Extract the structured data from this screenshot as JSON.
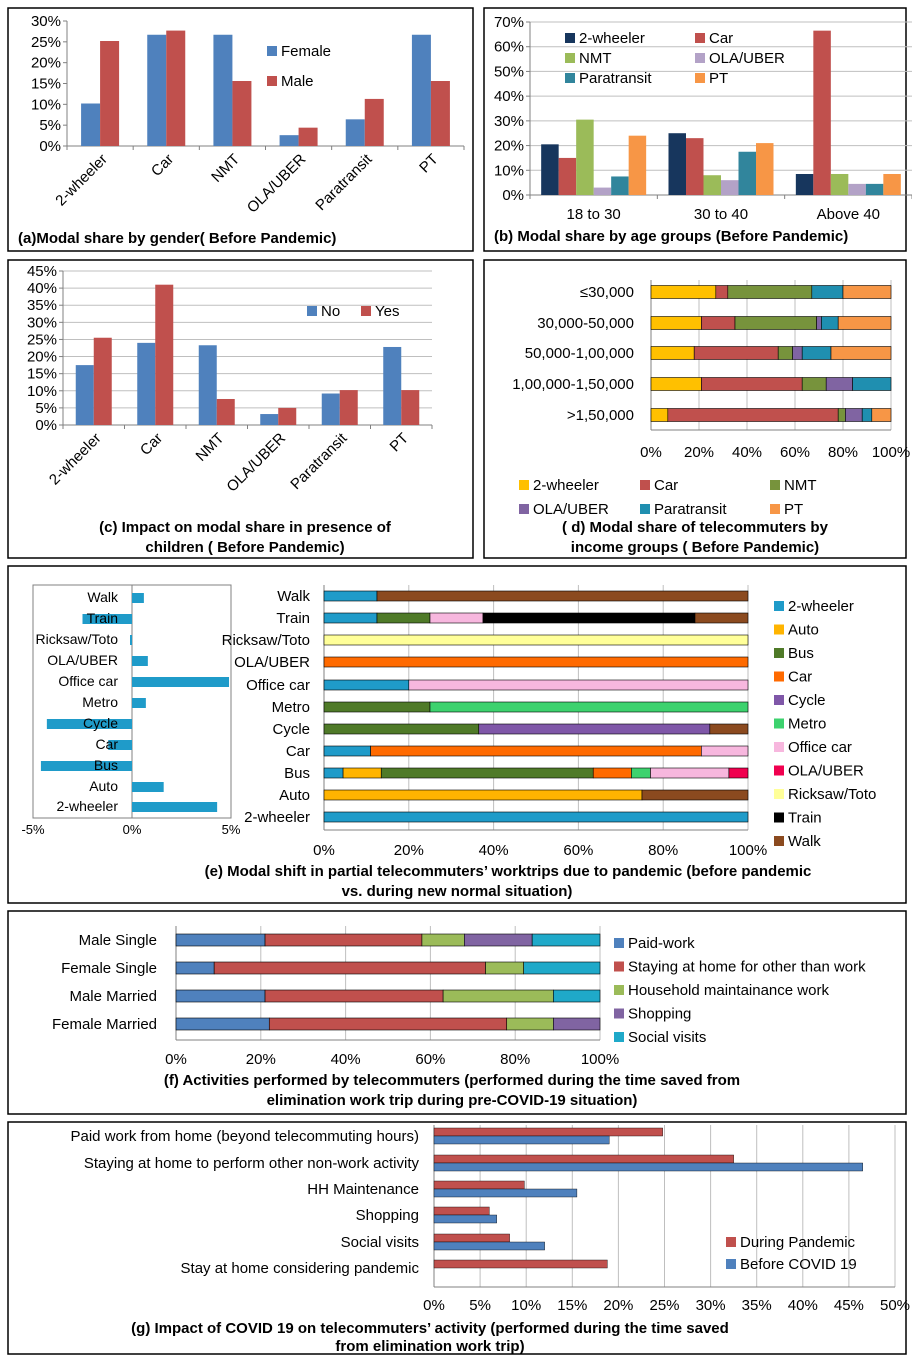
{
  "colors": {
    "female": "#4F81BD",
    "male": "#C0504D",
    "no": "#4F81BD",
    "yes": "#C0504D",
    "tw": "#17365D",
    "car": "#C0504D",
    "nmt": "#9BBB59",
    "ola": "#B3A2C7",
    "para": "#31859C",
    "pt": "#F79646",
    "d_tw": "#FFC000",
    "d_car": "#C0504D",
    "d_nmt": "#77933C",
    "d_ola": "#8064A2",
    "d_para": "#1F8FB0",
    "d_pt": "#F79646",
    "e_2w": "#1F9BC9",
    "e_auto": "#FFB400",
    "e_bus": "#4F7A28",
    "e_car": "#FF6A00",
    "e_cycle": "#7F57A8",
    "e_metro": "#3DD26E",
    "e_office": "#F7B7DE",
    "e_ola": "#F0004F",
    "e_rick": "#FFFF99",
    "e_train": "#000000",
    "e_walk": "#8B4A1F",
    "f_paid": "#4F81BD",
    "f_stay": "#C0504D",
    "f_hh": "#9BBB59",
    "f_shop": "#8064A2",
    "f_social": "#1FA9C9",
    "g_during": "#C0504D",
    "g_before": "#4F81BD",
    "grid": "#BFBFBF",
    "axis": "#808080"
  },
  "chart_data": [
    {
      "id": "a",
      "type": "bar",
      "caption": "(a)Modal share by gender( Before Pandemic)",
      "categories": [
        "2-wheeler",
        "Car",
        "NMT",
        "OLA/UBER",
        "Paratransit",
        "PT"
      ],
      "series": [
        {
          "name": "Female",
          "values": [
            10.2,
            26.7,
            26.7,
            2.6,
            6.4,
            26.7
          ]
        },
        {
          "name": "Male",
          "values": [
            25.2,
            27.7,
            15.6,
            4.4,
            11.3,
            15.6
          ]
        }
      ],
      "ylim": [
        0,
        30
      ],
      "yticks": [
        "0%",
        "5%",
        "10%",
        "15%",
        "20%",
        "25%",
        "30%"
      ],
      "grid": false,
      "legend": "right"
    },
    {
      "id": "b",
      "type": "bar",
      "caption": "(b) Modal share by age groups (Before Pandemic)",
      "categories": [
        "18 to 30",
        "30 to 40",
        "Above 40"
      ],
      "series": [
        {
          "name": "2-wheeler",
          "values": [
            20.5,
            25.0,
            8.5
          ]
        },
        {
          "name": "Car",
          "values": [
            15.0,
            23.0,
            66.5
          ]
        },
        {
          "name": "NMT",
          "values": [
            30.5,
            8.0,
            8.5
          ]
        },
        {
          "name": "OLA/UBER",
          "values": [
            3.0,
            6.0,
            4.5
          ]
        },
        {
          "name": "Paratransit",
          "values": [
            7.5,
            17.5,
            4.5
          ]
        },
        {
          "name": "PT",
          "values": [
            24.0,
            21.0,
            8.5
          ]
        }
      ],
      "ylim": [
        0,
        70
      ],
      "yticks": [
        "0%",
        "10%",
        "20%",
        "30%",
        "40%",
        "50%",
        "60%",
        "70%"
      ],
      "grid": true,
      "legend": "top"
    },
    {
      "id": "c",
      "type": "bar",
      "caption": [
        "(c) Impact on modal share in presence of",
        "children  ( Before Pandemic)"
      ],
      "categories": [
        "2-wheeler",
        "Car",
        "NMT",
        "OLA/UBER",
        "Paratransit",
        "PT"
      ],
      "series": [
        {
          "name": "No",
          "values": [
            17.5,
            24.0,
            23.3,
            3.2,
            9.2,
            22.8
          ]
        },
        {
          "name": "Yes",
          "values": [
            25.5,
            41.0,
            7.6,
            5.0,
            10.2,
            10.2
          ]
        }
      ],
      "ylim": [
        0,
        45
      ],
      "yticks": [
        "0%",
        "5%",
        "10%",
        "15%",
        "20%",
        "25%",
        "30%",
        "35%",
        "40%",
        "45%"
      ],
      "grid": true,
      "legend": "top-right"
    },
    {
      "id": "d",
      "type": "bar",
      "stacked": true,
      "orientation": "horizontal",
      "caption": [
        "( d) Modal share of telecommuters by",
        "income groups ( Before Pandemic)"
      ],
      "categories": [
        "≤30,000",
        "30,000-50,000",
        "50,000-1,00,000",
        "1,00,000-1,50,000",
        ">1,50,000"
      ],
      "series": [
        {
          "name": "2-wheeler",
          "values": [
            27,
            21,
            18,
            21,
            7
          ]
        },
        {
          "name": "Car",
          "values": [
            5,
            14,
            35,
            42,
            71
          ]
        },
        {
          "name": "NMT",
          "values": [
            35,
            34,
            6,
            10,
            3
          ]
        },
        {
          "name": "OLA/UBER",
          "values": [
            0,
            2,
            4,
            11,
            7
          ]
        },
        {
          "name": "Paratransit",
          "values": [
            13,
            7,
            12,
            16,
            4
          ]
        },
        {
          "name": "PT",
          "values": [
            20,
            22,
            25,
            0,
            8
          ]
        }
      ],
      "xticks": [
        "0%",
        "20%",
        "40%",
        "60%",
        "80%",
        "100%"
      ],
      "legend": "bottom"
    },
    {
      "id": "e_left",
      "type": "bar",
      "orientation": "horizontal",
      "categories": [
        "Walk",
        "Train",
        "Ricksaw/Toto",
        "OLA/UBER",
        "Office car",
        "Metro",
        "Cycle",
        "Car",
        "Bus",
        "Auto",
        "2-wheeler"
      ],
      "values": [
        0.6,
        -2.5,
        -0.1,
        0.8,
        4.9,
        0.7,
        -4.3,
        -1.2,
        -4.6,
        1.6,
        4.3
      ],
      "xlim": [
        -5,
        5
      ],
      "xticks": [
        "-5%",
        "0%",
        "5%"
      ]
    },
    {
      "id": "e",
      "type": "bar",
      "stacked": true,
      "orientation": "horizontal",
      "caption": [
        "(e) Modal shift in partial telecommuters’ worktrips due to pandemic (before pandemic",
        "vs. during new normal situation)"
      ],
      "categories": [
        "Walk",
        "Train",
        "Ricksaw/Toto",
        "OLA/UBER",
        "Office car",
        "Metro",
        "Cycle",
        "Car",
        "Bus",
        "Auto",
        "2-wheeler"
      ],
      "series": [
        {
          "name": "2-wheeler",
          "values": [
            12.5,
            12.5,
            0,
            0,
            20,
            0,
            0,
            11,
            4.5,
            0,
            100
          ]
        },
        {
          "name": "Auto",
          "values": [
            0,
            0,
            0,
            0,
            0,
            0,
            0,
            0,
            9,
            75,
            0
          ]
        },
        {
          "name": "Bus",
          "values": [
            0,
            12.5,
            0,
            0,
            0,
            25,
            36.5,
            0,
            50,
            0,
            0
          ]
        },
        {
          "name": "Car",
          "values": [
            0,
            0,
            0,
            100,
            0,
            0,
            0,
            78,
            9,
            0,
            0
          ]
        },
        {
          "name": "Cycle",
          "values": [
            0,
            0,
            0,
            0,
            0,
            0,
            54.5,
            0,
            0,
            0,
            0
          ]
        },
        {
          "name": "Metro",
          "values": [
            0,
            0,
            0,
            0,
            0,
            75,
            0,
            0,
            4.5,
            0,
            0
          ]
        },
        {
          "name": "Office car",
          "values": [
            0,
            12.5,
            0,
            0,
            80,
            0,
            0,
            11,
            18.5,
            0,
            0
          ]
        },
        {
          "name": "OLA/UBER",
          "values": [
            0,
            0,
            0,
            0,
            0,
            0,
            0,
            0,
            4.5,
            0,
            0
          ]
        },
        {
          "name": "Ricksaw/Toto",
          "values": [
            0,
            0,
            100,
            0,
            0,
            0,
            0,
            0,
            0,
            0,
            0
          ]
        },
        {
          "name": "Train",
          "values": [
            0,
            50,
            0,
            0,
            0,
            0,
            0,
            0,
            0,
            0,
            0
          ]
        },
        {
          "name": "Walk",
          "values": [
            87.5,
            12.5,
            0,
            0,
            0,
            0,
            9,
            0,
            0,
            25,
            0
          ]
        }
      ],
      "xticks": [
        "0%",
        "20%",
        "40%",
        "60%",
        "80%",
        "100%"
      ],
      "legend": "right"
    },
    {
      "id": "f",
      "type": "bar",
      "stacked": true,
      "orientation": "horizontal",
      "caption": [
        "(f) Activities performed by telecommuters (performed  during the time saved from",
        "elimination work trip during pre-COVID-19 situation)"
      ],
      "categories": [
        "Male Single",
        "Female Single",
        "Male Married",
        "Female Married"
      ],
      "series": [
        {
          "name": "Paid-work",
          "values": [
            21,
            9,
            21,
            22
          ]
        },
        {
          "name": "Staying at home for other than work",
          "values": [
            37,
            64,
            42,
            56
          ]
        },
        {
          "name": "Household maintainance work",
          "values": [
            10,
            9,
            26,
            11
          ]
        },
        {
          "name": "Shopping",
          "values": [
            16,
            0,
            0,
            11
          ]
        },
        {
          "name": "Social visits",
          "values": [
            16,
            18,
            11,
            0
          ]
        }
      ],
      "xticks": [
        "0%",
        "20%",
        "40%",
        "60%",
        "80%",
        "100%"
      ],
      "legend": "right"
    },
    {
      "id": "g",
      "type": "bar",
      "orientation": "horizontal",
      "caption": [
        "(g) Impact of COVID 19 on telecommuters’ activity (performed  during the time saved",
        "from elimination work trip)"
      ],
      "categories": [
        "Paid work from home (beyond telecommuting hours)",
        "Staying at home to perform other non-work activity",
        "HH Maintenance",
        "Shopping",
        "Social visits",
        "Stay at home considering pandemic"
      ],
      "series": [
        {
          "name": "During Pandemic",
          "values": [
            24.8,
            32.5,
            9.8,
            6.0,
            8.2,
            18.8
          ]
        },
        {
          "name": "Before COVID 19",
          "values": [
            19.0,
            46.5,
            15.5,
            6.8,
            12.0,
            0
          ]
        }
      ],
      "xlim": [
        0,
        50
      ],
      "xticks": [
        "0%",
        "5%",
        "10%",
        "15%",
        "20%",
        "25%",
        "30%",
        "35%",
        "40%",
        "45%",
        "50%"
      ],
      "grid": true,
      "legend": "bottom-right"
    }
  ]
}
